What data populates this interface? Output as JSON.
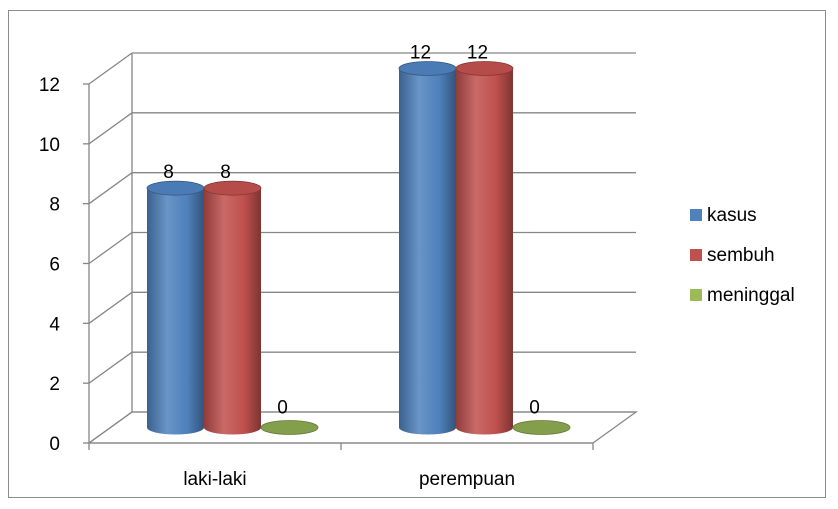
{
  "chart_data": {
    "type": "bar",
    "style": "3d-cylinder",
    "categories": [
      "laki-laki",
      "perempuan"
    ],
    "series": [
      {
        "name": "kasus",
        "values": [
          8,
          12
        ],
        "color": "#4f81bd"
      },
      {
        "name": "sembuh",
        "values": [
          8,
          12
        ],
        "color": "#c0504d"
      },
      {
        "name": "meninggal",
        "values": [
          0,
          0
        ],
        "color": "#9bbb59"
      }
    ],
    "ylim": [
      0,
      12
    ],
    "yticks": [
      0,
      2,
      4,
      6,
      8,
      10,
      12
    ],
    "grid": true,
    "legend_position": "right",
    "data_labels": true
  }
}
